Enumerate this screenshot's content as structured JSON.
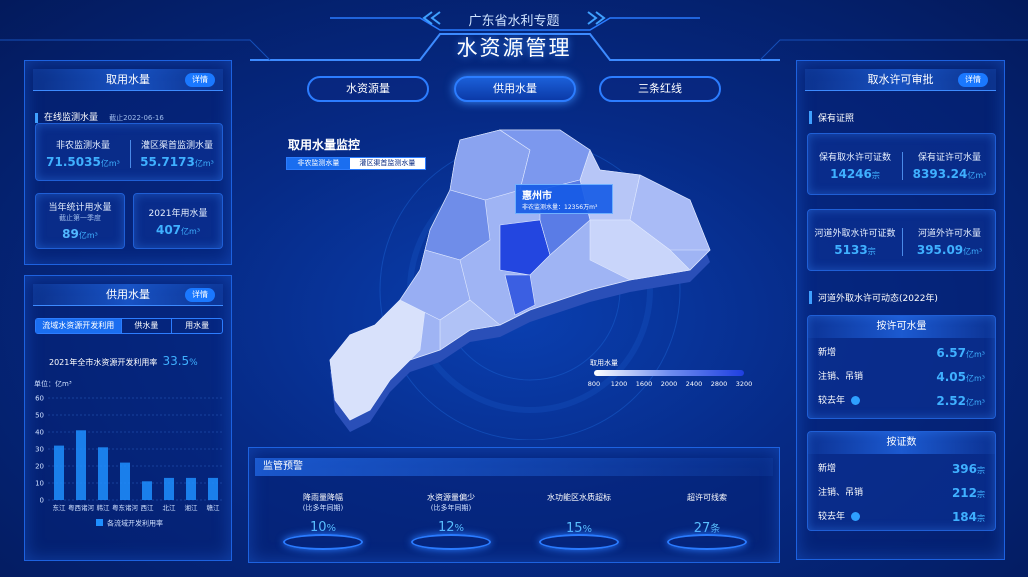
{
  "header": {
    "subtitle": "广东省水利专题",
    "title": "水资源管理"
  },
  "tabs": [
    "水资源量",
    "供用水量",
    "三条红线"
  ],
  "intake": {
    "title": "取用水量",
    "detail": "详情",
    "section": "在线监测水量",
    "date": "截止2022-06-16",
    "cards": [
      {
        "label": "非农监测水量",
        "value": 71.5035,
        "unit": "亿m³"
      },
      {
        "label": "灌区渠首监测水量",
        "value": 55.7173,
        "unit": "亿m³"
      },
      {
        "label": "当年统计用水量",
        "note": "截止第一季度",
        "value": 89,
        "unit": "亿m³"
      },
      {
        "label": "2021年用水量",
        "value": 407,
        "unit": "亿m³"
      }
    ]
  },
  "supply": {
    "title": "供用水量",
    "detail": "详情",
    "tabs": [
      "流域水资源开发利用",
      "供水量",
      "用水量"
    ],
    "rate_label": "2021年全市水资源开发利用率",
    "rate": 33.5,
    "rate_unit": "%"
  },
  "chart_data": {
    "type": "bar",
    "y_label": "单位：亿m³",
    "categories": [
      "东江",
      "粤西诸河",
      "韩江",
      "粤东诸河",
      "西江",
      "北江",
      "湘江",
      "赣江"
    ],
    "series": [
      {
        "name": "各流域开发利用率",
        "color": "#1e8fff",
        "values": [
          32,
          41,
          31,
          22,
          11,
          13,
          13,
          13
        ]
      }
    ],
    "ylim": [
      0,
      60
    ],
    "yticks": [
      0,
      10,
      20,
      30,
      40,
      50,
      60
    ],
    "grid": true
  },
  "map": {
    "title": "取用水量监控",
    "toggles": [
      "非农监测水量",
      "灌区渠首监测水量"
    ],
    "tooltip": {
      "city": "惠州市",
      "label": "非农监测水量：",
      "value": 12356,
      "unit": "万m³"
    },
    "legend": {
      "title": "取用水量",
      "ticks": [
        800,
        1200,
        1600,
        2000,
        2400,
        2800,
        3200
      ]
    }
  },
  "warning": {
    "title": "监管预警",
    "items": [
      {
        "label": "降雨量降幅",
        "note": "(比多年同期)",
        "value": 10,
        "unit": "%"
      },
      {
        "label": "水资源量偏少",
        "note": "(比多年同期)",
        "value": 12,
        "unit": "%"
      },
      {
        "label": "水功能区水质超标",
        "value": 15,
        "unit": "%"
      },
      {
        "label": "超许可线索",
        "value": 27,
        "unit": "条"
      }
    ]
  },
  "permit": {
    "title": "取水许可审批",
    "detail": "详情",
    "section": "保有证照",
    "stats": [
      {
        "label": "保有取水许可证数",
        "value": 14246,
        "unit": "宗"
      },
      {
        "label": "保有证许可水量",
        "value": 8393.24,
        "unit": "亿m³"
      },
      {
        "label": "河道外取水许可证数",
        "value": 5133,
        "unit": "宗"
      },
      {
        "label": "河道外许可水量",
        "value": 395.09,
        "unit": "亿m³"
      }
    ],
    "dynamic_title": "河道外取水许可动态(2022年)",
    "by_volume": {
      "title": "按许可水量",
      "rows": [
        {
          "label": "新增",
          "value": 6.57,
          "unit": "亿m³"
        },
        {
          "label": "注销、吊销",
          "value": 4.05,
          "unit": "亿m³"
        },
        {
          "label": "较去年",
          "value": 2.52,
          "unit": "亿m³"
        }
      ]
    },
    "by_count": {
      "title": "按证数",
      "rows": [
        {
          "label": "新增",
          "value": 396,
          "unit": "宗"
        },
        {
          "label": "注销、吊销",
          "value": 212,
          "unit": "宗"
        },
        {
          "label": "较去年",
          "value": 184,
          "unit": "宗"
        }
      ]
    }
  }
}
